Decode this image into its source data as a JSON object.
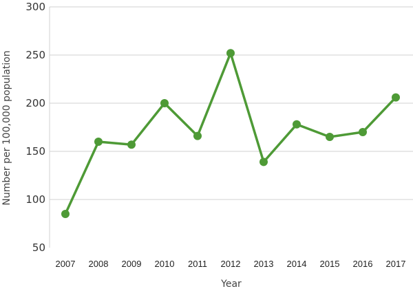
{
  "chart_data": {
    "type": "line",
    "title": "",
    "xlabel": "Year",
    "ylabel": "Number per 100,000 population",
    "ylim": [
      50,
      300
    ],
    "yticks": [
      50,
      100,
      150,
      200,
      250,
      300
    ],
    "grid": true,
    "categories": [
      "2007",
      "2008",
      "2009",
      "2010",
      "2011",
      "2012",
      "2013",
      "2014",
      "2015",
      "2016",
      "2017"
    ],
    "series": [
      {
        "values": [
          85,
          160,
          157,
          200,
          166,
          252,
          139,
          178,
          165,
          170,
          206
        ],
        "color": "#4e9a36"
      }
    ]
  }
}
